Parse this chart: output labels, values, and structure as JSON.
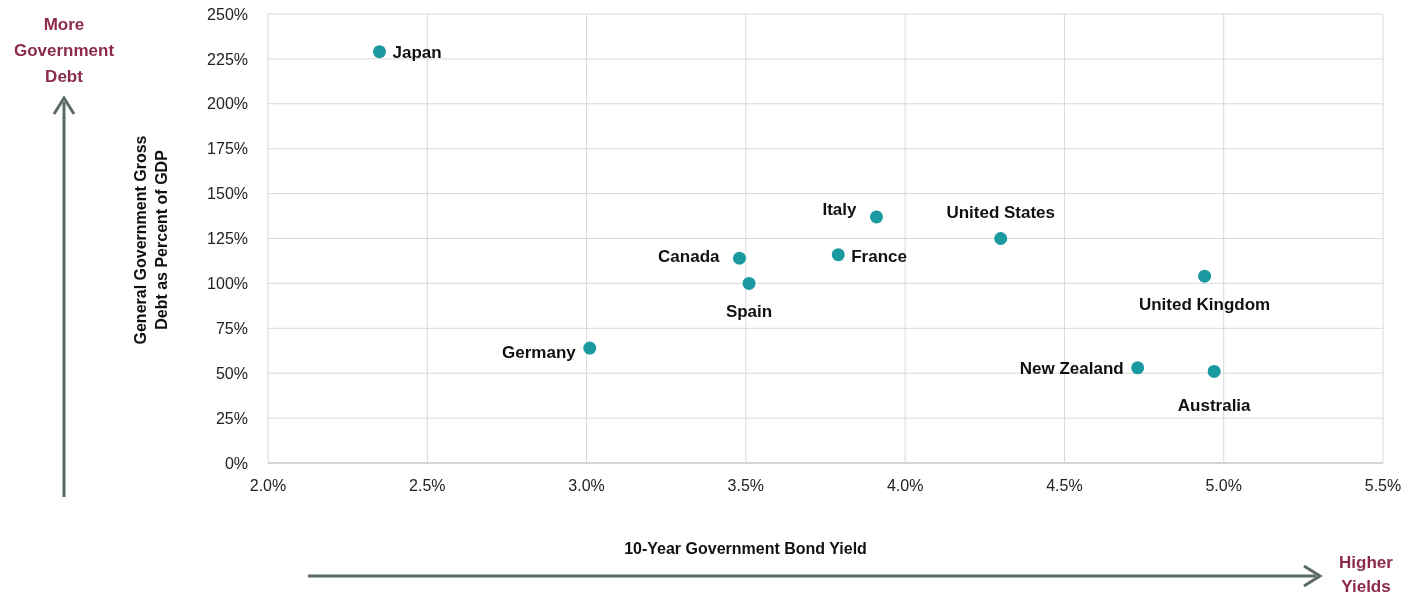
{
  "chart_data": {
    "type": "scatter",
    "xlabel": "10-Year Government Bond Yield",
    "ylabel": "General Government Gross Debt as Percent of GDP",
    "series": [
      {
        "color": "#1a9aa0",
        "x": [
          2.35,
          3.01,
          3.48,
          3.51,
          3.79,
          3.91,
          4.3,
          4.94,
          4.73,
          4.97
        ],
        "values": [
          229,
          64,
          114,
          100,
          116,
          137,
          125,
          104,
          53,
          51
        ]
      }
    ],
    "xlim": [
      2.0,
      5.5
    ],
    "xticks": [
      {
        "value": 2.0,
        "label": "2.0%"
      },
      {
        "value": 2.5,
        "label": "2.5%"
      },
      {
        "value": 3.0,
        "label": "3.0%"
      },
      {
        "value": 3.5,
        "label": "3.5%"
      },
      {
        "value": 4.0,
        "label": "4.0%"
      },
      {
        "value": 4.5,
        "label": "4.5%"
      },
      {
        "value": 5.0,
        "label": "5.0%"
      },
      {
        "value": 5.5,
        "label": "5.5%"
      }
    ],
    "ylim": [
      0,
      250
    ],
    "yticks": [
      {
        "value": 0,
        "label": "0%"
      },
      {
        "value": 25,
        "label": "25%"
      },
      {
        "value": 50,
        "label": "50%"
      },
      {
        "value": 75,
        "label": "75%"
      },
      {
        "value": 100,
        "label": "100%"
      },
      {
        "value": 125,
        "label": "125%"
      },
      {
        "value": 150,
        "label": "150%"
      },
      {
        "value": 175,
        "label": "175%"
      },
      {
        "value": 200,
        "label": "200%"
      },
      {
        "value": 225,
        "label": "225%"
      },
      {
        "value": 250,
        "label": "250%"
      }
    ],
    "grid": true,
    "marker": "circle",
    "annotations": [
      {
        "text": "Japan",
        "x": 2.35,
        "y": 229
      },
      {
        "text": "Germany",
        "x": 3.01,
        "y": 64
      },
      {
        "text": "Canada",
        "x": 3.48,
        "y": 114
      },
      {
        "text": "Spain",
        "x": 3.51,
        "y": 100
      },
      {
        "text": "France",
        "x": 3.79,
        "y": 116
      },
      {
        "text": "Italy",
        "x": 3.91,
        "y": 137
      },
      {
        "text": "United States",
        "x": 4.3,
        "y": 125
      },
      {
        "text": "United Kingdom",
        "x": 4.94,
        "y": 104
      },
      {
        "text": "New Zealand",
        "x": 4.73,
        "y": 53
      },
      {
        "text": "Australia",
        "x": 4.97,
        "y": 51
      },
      "More Government Debt",
      "Higher Yields"
    ]
  }
}
